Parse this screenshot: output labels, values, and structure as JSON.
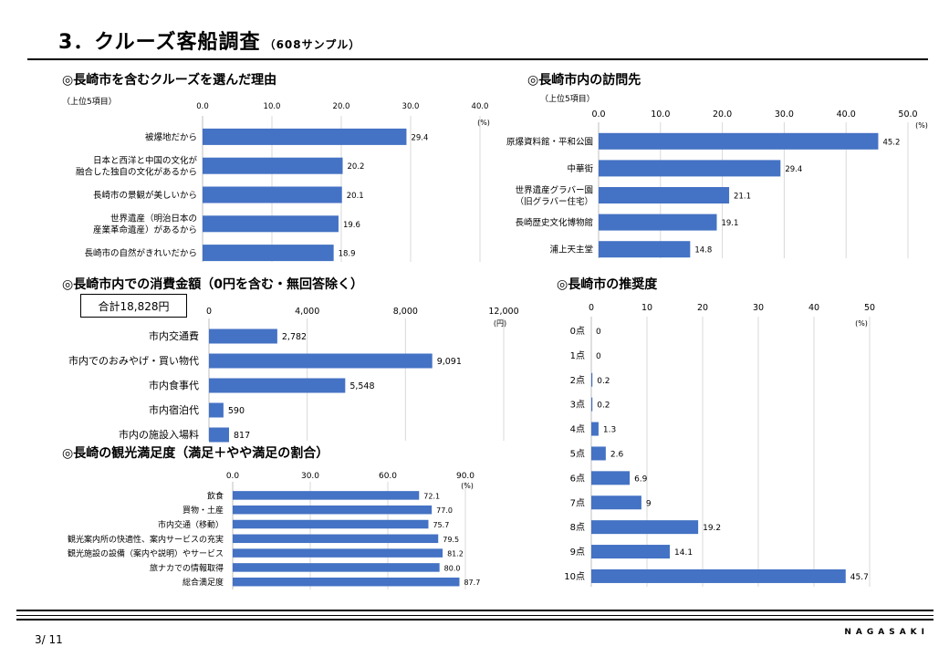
{
  "header": {
    "title": "3．クルーズ客船調査",
    "sample": "（608サンプル）"
  },
  "sections": {
    "reason": "◎長崎市を含むクルーズを選んだ理由",
    "visit": "◎長崎市内の訪問先",
    "spend": "◎長崎市内での消費金額（0円を含む・無回答除く）",
    "recommend": "◎長崎市の推奨度",
    "satisfaction": "◎長崎の観光満足度（満足＋やや満足の割合）"
  },
  "notes": {
    "top5_a": "（上位5項目）",
    "top5_b": "（上位5項目）",
    "total": "合計18,828円"
  },
  "footer": {
    "page": "3/ 11",
    "logo": "NAGASAKI"
  },
  "colors": {
    "bar": "#4472C4",
    "grid": "#d9d9d9"
  },
  "chart_data": [
    {
      "id": "reason",
      "type": "bar",
      "orientation": "horizontal",
      "categories": [
        "被爆地だから",
        "日本と西洋と中国の文化が\n融合した独自の文化があるから",
        "長崎市の景観が美しいから",
        "世界遺産（明治日本の\n産業革命遺産）があるから",
        "長崎市の自然がきれいだから"
      ],
      "values": [
        29.4,
        20.2,
        20.1,
        19.6,
        18.9
      ],
      "value_labels": [
        "29.4",
        "20.2",
        "20.1",
        "19.6",
        "18.9"
      ],
      "ticks": [
        "0.0",
        "10.0",
        "20.0",
        "30.0",
        "40.0"
      ],
      "xlim": [
        0,
        40
      ],
      "unit": "(%)"
    },
    {
      "id": "visit",
      "type": "bar",
      "orientation": "horizontal",
      "categories": [
        "原爆資料館・平和公園",
        "中華街",
        "世界遺産グラバー園\n（旧グラバー住宅）",
        "長崎歴史文化博物館",
        "浦上天主堂"
      ],
      "values": [
        45.2,
        29.4,
        21.1,
        19.1,
        14.8
      ],
      "value_labels": [
        "45.2",
        "29.4",
        "21.1",
        "19.1",
        "14.8"
      ],
      "ticks": [
        "0.0",
        "10.0",
        "20.0",
        "30.0",
        "40.0",
        "50.0"
      ],
      "xlim": [
        0,
        50
      ],
      "unit": "(%)"
    },
    {
      "id": "spend",
      "type": "bar",
      "orientation": "horizontal",
      "categories": [
        "市内交通費",
        "市内でのおみやげ・買い物代",
        "市内食事代",
        "市内宿泊代",
        "市内の施設入場料"
      ],
      "values": [
        2782,
        9091,
        5548,
        590,
        817
      ],
      "value_labels": [
        "2,782",
        "9,091",
        "5,548",
        "590",
        "817"
      ],
      "ticks": [
        "0",
        "4,000",
        "8,000",
        "12,000"
      ],
      "xlim": [
        0,
        12000
      ],
      "unit": "(円)"
    },
    {
      "id": "recommend",
      "type": "bar",
      "orientation": "horizontal",
      "categories": [
        "0点",
        "1点",
        "2点",
        "3点",
        "4点",
        "5点",
        "6点",
        "7点",
        "8点",
        "9点",
        "10点"
      ],
      "values": [
        0,
        0,
        0.2,
        0.2,
        1.3,
        2.6,
        6.9,
        9,
        19.2,
        14.1,
        45.7
      ],
      "value_labels": [
        "0",
        "0",
        "0.2",
        "0.2",
        "1.3",
        "2.6",
        "6.9",
        "9",
        "19.2",
        "14.1",
        "45.7"
      ],
      "ticks": [
        "0",
        "10",
        "20",
        "30",
        "40",
        "50"
      ],
      "xlim": [
        0,
        50
      ],
      "unit": "(%)"
    },
    {
      "id": "satisfaction",
      "type": "bar",
      "orientation": "horizontal",
      "categories": [
        "飲食",
        "買物・土産",
        "市内交通（移動）",
        "観光案内所の快適性、案内サービスの充実",
        "観光施設の設備（案内や説明）やサービス",
        "旅ナカでの情報取得",
        "総合満足度"
      ],
      "values": [
        72.1,
        77.0,
        75.7,
        79.5,
        81.2,
        80.0,
        87.7
      ],
      "value_labels": [
        "72.1",
        "77.0",
        "75.7",
        "79.5",
        "81.2",
        "80.0",
        "87.7"
      ],
      "ticks": [
        "0.0",
        "30.0",
        "60.0",
        "90.0"
      ],
      "xlim": [
        0,
        90
      ],
      "unit": "(%)"
    }
  ]
}
